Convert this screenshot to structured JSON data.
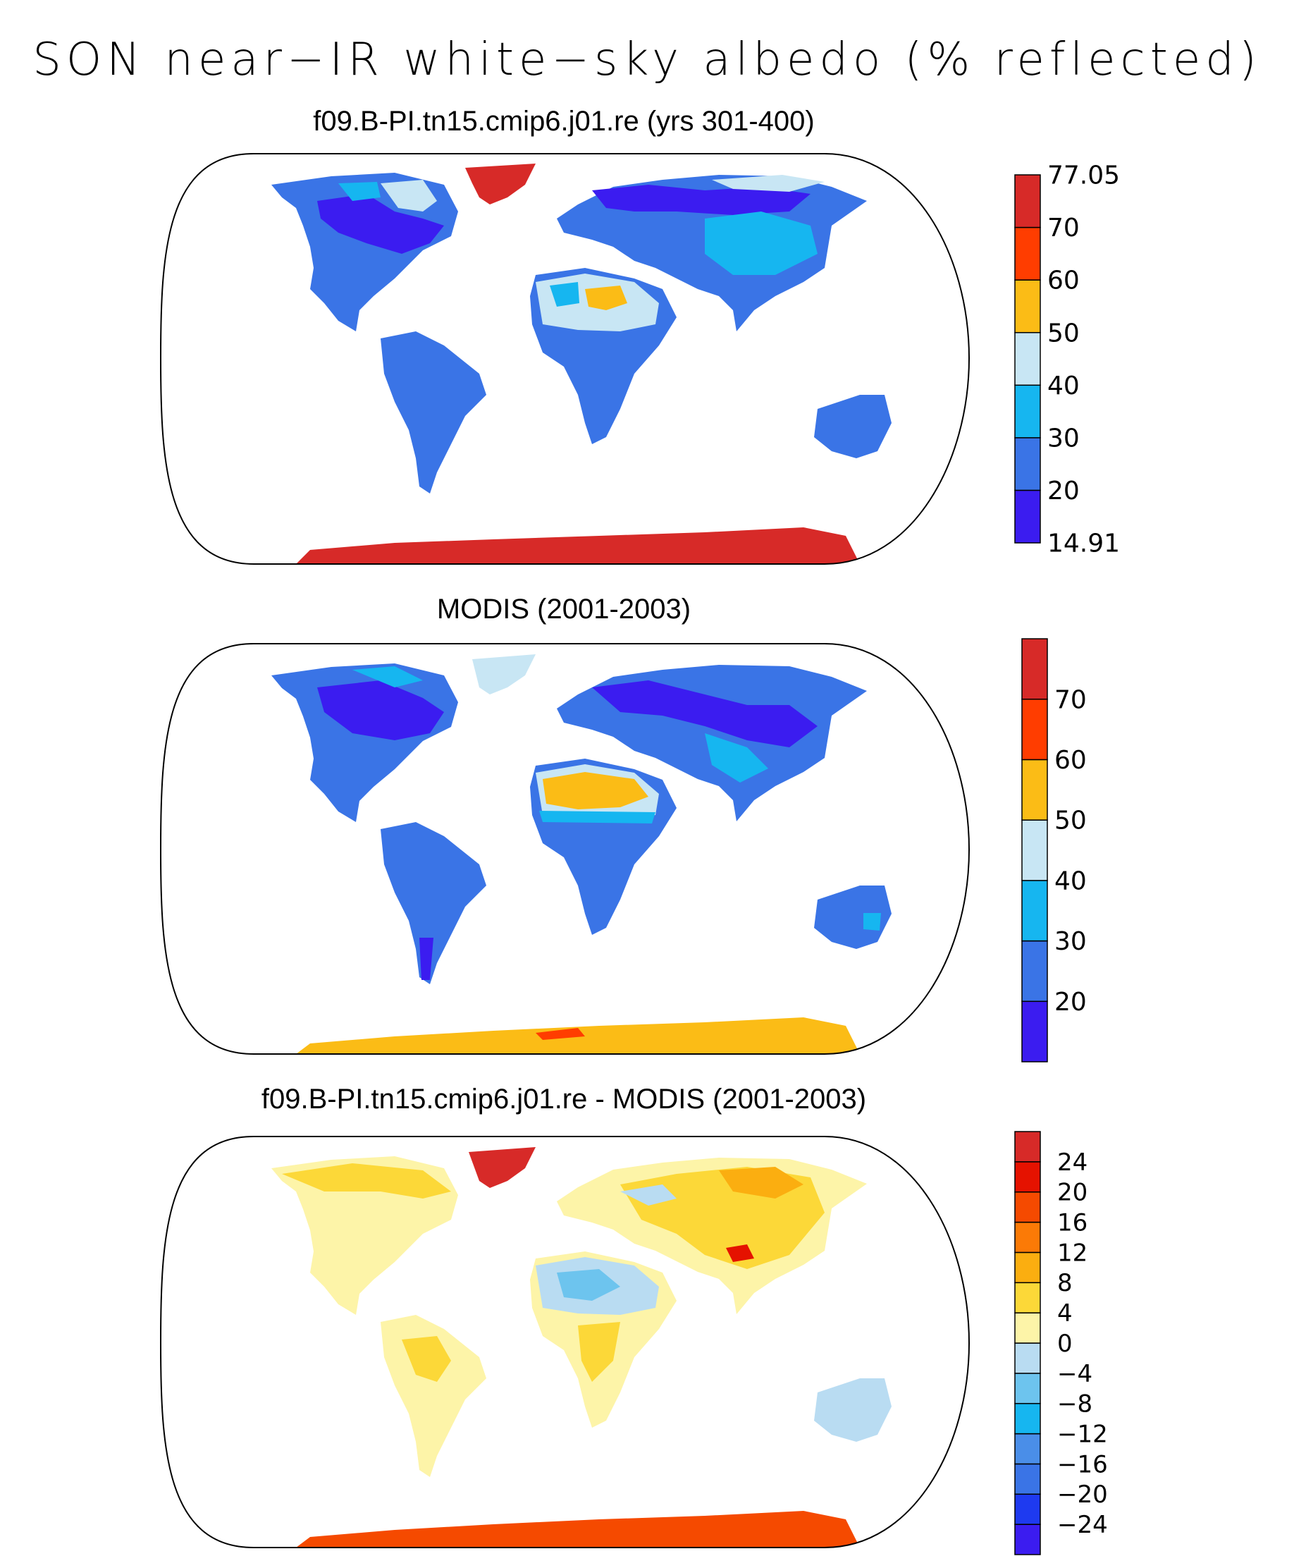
{
  "title": "SON near−IR white−sky albedo (% reflected)",
  "panels": [
    {
      "title": "f09.B-PI.tn15.cmip6.j01.re (yrs 301-400)",
      "colorbar": {
        "colors": [
          "#3b1cf0",
          "#3a74e6",
          "#16b6f0",
          "#c8e6f4",
          "#fbbc16",
          "#ff3d00",
          "#d72a28"
        ],
        "labels": [
          "14.91",
          "20",
          "30",
          "40",
          "50",
          "60",
          "70",
          "77.05"
        ]
      }
    },
    {
      "title": "MODIS (2001-2003)",
      "colorbar": {
        "colors": [
          "#3b1cf0",
          "#3a74e6",
          "#16b6f0",
          "#c8e6f4",
          "#fbbc16",
          "#ff3d00",
          "#d72a28"
        ],
        "labels": [
          "20",
          "30",
          "40",
          "50",
          "60",
          "70"
        ]
      }
    },
    {
      "title": "f09.B-PI.tn15.cmip6.j01.re - MODIS (2001-2003)",
      "colorbar": {
        "colors": [
          "#3b1cf0",
          "#1e3af0",
          "#3a74e6",
          "#4a8ee8",
          "#16b6f0",
          "#6dc4ee",
          "#b9dcf2",
          "#fdf4a8",
          "#fcd838",
          "#fbae10",
          "#fb7a06",
          "#f54a00",
          "#e51200",
          "#d72a28"
        ],
        "labels": [
          "−24",
          "−20",
          "−16",
          "−12",
          "−8",
          "−4",
          "0",
          "4",
          "8",
          "12",
          "16",
          "20",
          "24"
        ]
      }
    }
  ]
}
